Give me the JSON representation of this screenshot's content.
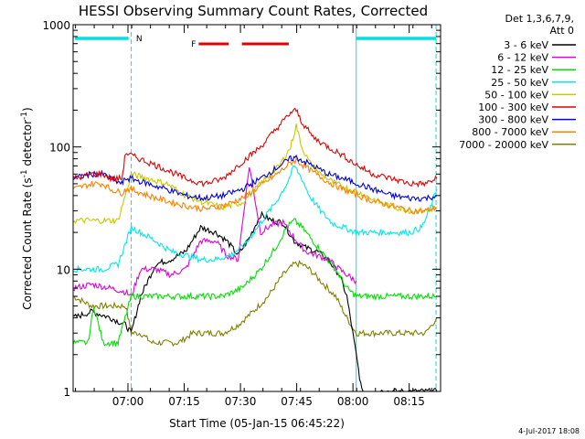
{
  "chart_data": {
    "type": "line",
    "title": "HESSI Observing Summary Count Rates, Corrected",
    "ylabel_main": "Corrected Count Rate (s",
    "ylabel_sup1": "-1",
    "ylabel_mid": " detector",
    "ylabel_sup2": "-1",
    "ylabel_end": ")",
    "xlabel": "Start Time (05-Jan-15 06:45:22)",
    "y_scale": "log",
    "ylim": [
      1,
      1000
    ],
    "xlim_minutes": [
      0,
      98
    ],
    "x_ticks": [
      {
        "t": 14.63,
        "label": "07:00"
      },
      {
        "t": 29.63,
        "label": "07:15"
      },
      {
        "t": 44.63,
        "label": "07:30"
      },
      {
        "t": 59.63,
        "label": "07:45"
      },
      {
        "t": 74.63,
        "label": "08:00"
      },
      {
        "t": 89.63,
        "label": "08:15"
      }
    ],
    "y_ticks": [
      {
        "v": 1,
        "label": "1"
      },
      {
        "v": 10,
        "label": "10"
      },
      {
        "v": 100,
        "label": "100"
      },
      {
        "v": 1000,
        "label": "1000"
      }
    ],
    "legend": {
      "header1": "Det 1,3,6,7,9,",
      "header2": "Att 0",
      "placement": "right"
    },
    "series": [
      {
        "name": "3 - 6 keV",
        "color": "#000000",
        "x": [
          0,
          5,
          10,
          14,
          15.5,
          18,
          22,
          26,
          30,
          34,
          38,
          41,
          44,
          47,
          50,
          53,
          56,
          59,
          62,
          65,
          68,
          71,
          73,
          75.5,
          77,
          80,
          85,
          90,
          94,
          97
        ],
        "y": [
          4,
          4.5,
          4,
          3.5,
          3,
          6,
          11,
          12,
          14,
          22,
          20,
          17,
          13,
          18,
          28,
          25,
          24,
          17,
          15,
          14,
          12,
          9,
          6,
          2,
          1,
          1,
          1,
          1,
          1,
          1
        ]
      },
      {
        "name": "6 - 12 keV",
        "color": "#e000e0",
        "x": [
          0,
          5,
          10,
          14,
          15.5,
          18,
          22,
          26,
          30,
          34,
          38,
          41,
          44,
          47,
          50,
          53,
          56,
          59,
          62,
          65,
          68,
          71,
          73,
          75.5
        ],
        "y": [
          7,
          7.5,
          7,
          6.5,
          6,
          10,
          10,
          9,
          10,
          17,
          17,
          13,
          12,
          70,
          20,
          23,
          24,
          18,
          14,
          13,
          12,
          10,
          9,
          8
        ]
      },
      {
        "name": "12 - 25 keV",
        "color": "#00e000",
        "x": [
          0,
          4,
          5.5,
          8,
          12,
          15.5,
          20,
          25,
          30,
          35,
          40,
          45,
          50,
          54,
          57,
          59,
          61,
          64,
          67,
          70,
          73,
          75.5,
          80,
          85,
          90,
          94,
          97
        ],
        "y": [
          2.5,
          2.5,
          5,
          2.5,
          2.5,
          6,
          6,
          6,
          6,
          6,
          6,
          7,
          10,
          15,
          22,
          25,
          22,
          17,
          13,
          10,
          7,
          6,
          6,
          6,
          6,
          6,
          6
        ]
      },
      {
        "name": "25 - 50 keV",
        "color": "#00e8e8",
        "x": [
          0,
          4,
          8,
          12,
          15.5,
          18,
          22,
          26,
          30,
          34,
          38,
          42,
          46,
          50,
          54,
          57,
          59,
          61,
          63,
          66,
          69,
          72,
          75.5,
          80,
          85,
          90,
          93,
          95,
          97
        ],
        "y": [
          10,
          10,
          10,
          11,
          22,
          20,
          17,
          14,
          13,
          12,
          12,
          13,
          16,
          24,
          35,
          50,
          70,
          55,
          40,
          30,
          24,
          22,
          20,
          20,
          20,
          20,
          22,
          30,
          45
        ]
      },
      {
        "name": "50 - 100 keV",
        "color": "#c8c800",
        "x": [
          0,
          4,
          8,
          12,
          15.5,
          20,
          25,
          30,
          35,
          40,
          45,
          50,
          55,
          58,
          59.5,
          61,
          63,
          66,
          70,
          74,
          78,
          82,
          86,
          90,
          94,
          97
        ],
        "y": [
          25,
          25,
          25,
          25,
          60,
          55,
          50,
          40,
          35,
          32,
          35,
          50,
          70,
          100,
          150,
          100,
          75,
          60,
          50,
          45,
          40,
          35,
          32,
          30,
          30,
          32
        ]
      },
      {
        "name": "100 - 300 keV",
        "color": "#e00000",
        "x": [
          0,
          5,
          8,
          10,
          13,
          14,
          15.5,
          20,
          25,
          30,
          35,
          40,
          45,
          50,
          55,
          58,
          59.5,
          61,
          64,
          68,
          72,
          76,
          80,
          85,
          90,
          94,
          97
        ],
        "y": [
          55,
          60,
          60,
          55,
          55,
          90,
          85,
          75,
          65,
          55,
          50,
          55,
          75,
          100,
          150,
          190,
          200,
          160,
          120,
          100,
          85,
          70,
          60,
          55,
          50,
          50,
          55
        ]
      },
      {
        "name": "300 - 800 keV",
        "color": "#0000e0",
        "x": [
          0,
          5,
          8,
          10,
          13,
          14,
          15.5,
          20,
          25,
          30,
          35,
          40,
          45,
          50,
          55,
          58,
          59.5,
          61,
          64,
          68,
          72,
          76,
          80,
          85,
          90,
          94,
          97
        ],
        "y": [
          55,
          60,
          60,
          55,
          50,
          55,
          55,
          50,
          45,
          40,
          38,
          40,
          45,
          55,
          70,
          80,
          82,
          78,
          70,
          60,
          55,
          50,
          45,
          40,
          38,
          38,
          40
        ]
      },
      {
        "name": "800 - 7000 keV",
        "color": "#ff8000",
        "x": [
          0,
          5,
          8,
          10,
          13,
          14,
          15.5,
          20,
          25,
          30,
          35,
          40,
          45,
          50,
          55,
          58,
          59.5,
          61,
          64,
          68,
          72,
          76,
          80,
          85,
          90,
          94,
          97
        ],
        "y": [
          45,
          50,
          50,
          45,
          42,
          45,
          45,
          40,
          36,
          33,
          31,
          33,
          38,
          48,
          62,
          74,
          78,
          72,
          62,
          52,
          45,
          40,
          36,
          33,
          30,
          30,
          32
        ]
      },
      {
        "name": "7000 - 20000 keV",
        "color": "#808000",
        "x": [
          0,
          5,
          10,
          14,
          15.5,
          18,
          21,
          24,
          28,
          32,
          36,
          40,
          44,
          48,
          52,
          56,
          59,
          61,
          63,
          66,
          70,
          73,
          75.5,
          80,
          85,
          90,
          94,
          97
        ],
        "y": [
          6,
          5,
          5,
          5,
          3,
          3,
          2.5,
          2.5,
          2.5,
          3,
          3,
          3,
          3.5,
          4.5,
          6,
          9,
          11,
          11,
          10,
          8,
          6,
          4,
          3,
          3,
          3,
          3,
          3,
          4
        ]
      }
    ],
    "annotations": {
      "night_label": "N",
      "flare_label": "F"
    }
  },
  "footer": {
    "date_stamp": "4-Jul-2017 18:08"
  }
}
